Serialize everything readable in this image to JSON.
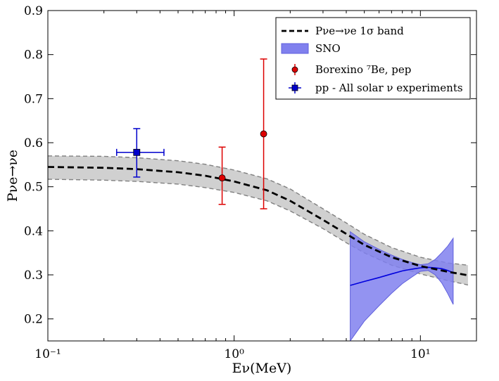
{
  "chart_data": {
    "type": "line",
    "title": "",
    "xlabel": "Eν(MeV)",
    "ylabel": "Pνe→νe",
    "x_scale": "log",
    "xlim": [
      0.1,
      20
    ],
    "ylim": [
      0.15,
      0.9
    ],
    "x_ticks": [
      {
        "value": 0.1,
        "label": "10⁻¹"
      },
      {
        "value": 1,
        "label": "10⁰"
      },
      {
        "value": 10,
        "label": "10¹"
      }
    ],
    "y_ticks": [
      0.2,
      0.3,
      0.4,
      0.5,
      0.6,
      0.7,
      0.8,
      0.9
    ],
    "grid": false,
    "legend_position": "top-right",
    "series": [
      {
        "name": "Pνe→νe 1σ band",
        "style": "dashed",
        "color": "#000000",
        "band_color": "#d0d0d0",
        "x": [
          0.1,
          0.2,
          0.3,
          0.5,
          0.7,
          1.0,
          1.5,
          2.0,
          3.0,
          4.0,
          5.0,
          7.0,
          10.0,
          14.0,
          18.0
        ],
        "y": [
          0.545,
          0.543,
          0.54,
          0.533,
          0.525,
          0.512,
          0.492,
          0.468,
          0.425,
          0.393,
          0.368,
          0.34,
          0.32,
          0.307,
          0.299
        ],
        "y_low": [
          0.517,
          0.515,
          0.512,
          0.506,
          0.498,
          0.487,
          0.468,
          0.445,
          0.405,
          0.373,
          0.35,
          0.322,
          0.302,
          0.287,
          0.277
        ],
        "y_high": [
          0.57,
          0.569,
          0.566,
          0.559,
          0.551,
          0.538,
          0.518,
          0.495,
          0.45,
          0.418,
          0.392,
          0.362,
          0.34,
          0.327,
          0.322
        ]
      },
      {
        "name": "SNO",
        "style": "band",
        "color": "#0000dd",
        "band_color": "#8080ee",
        "x": [
          4.2,
          5.0,
          6.0,
          7.0,
          8.0,
          9.0,
          10.0,
          11.0,
          12.0,
          13.0,
          14.0,
          15.0
        ],
        "y": [
          0.276,
          0.285,
          0.294,
          0.302,
          0.309,
          0.313,
          0.316,
          0.317,
          0.316,
          0.314,
          0.31,
          0.305
        ],
        "y_low": [
          0.15,
          0.195,
          0.23,
          0.258,
          0.28,
          0.295,
          0.308,
          0.31,
          0.3,
          0.282,
          0.258,
          0.233
        ],
        "y_high": [
          0.398,
          0.375,
          0.358,
          0.345,
          0.335,
          0.328,
          0.323,
          0.325,
          0.335,
          0.35,
          0.365,
          0.383
        ]
      }
    ],
    "points": [
      {
        "name": "Borexino ⁷Be, pep",
        "color": "#dd0000",
        "marker": "circle",
        "data": [
          {
            "x": 0.862,
            "y": 0.52,
            "y_low": 0.46,
            "y_high": 0.59
          },
          {
            "x": 1.44,
            "y": 0.62,
            "y_low": 0.45,
            "y_high": 0.79
          }
        ]
      },
      {
        "name": "pp - All solar ν experiments",
        "color": "#0000cc",
        "marker": "square",
        "data": [
          {
            "x": 0.3,
            "y": 0.578,
            "y_low": 0.522,
            "y_high": 0.632,
            "x_low": 0.234,
            "x_high": 0.42
          }
        ]
      }
    ]
  }
}
